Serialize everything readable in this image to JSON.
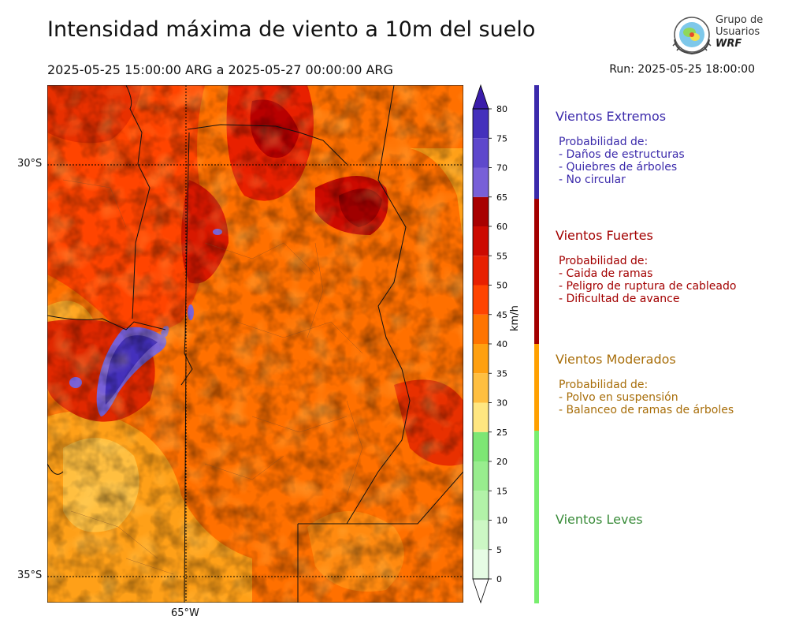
{
  "header": {
    "title": "Intensidad máxima de viento a 10m del suelo",
    "period": "2025-05-25 15:00:00 ARG  a  2025-05-27 00:00:00 ARG",
    "run": "Run: 2025-05-25 18:00:00"
  },
  "logo": {
    "line1": "Grupo de",
    "line2": "Usuarios",
    "line3": "WRF"
  },
  "map": {
    "lat_labels": [
      "30°S",
      "35°S"
    ],
    "lon_labels": [
      "65°W"
    ]
  },
  "colorbar": {
    "unit": "km/h",
    "ticks": [
      "0",
      "5",
      "10",
      "15",
      "20",
      "25",
      "30",
      "35",
      "40",
      "45",
      "50",
      "55",
      "60",
      "65",
      "70",
      "75",
      "80"
    ],
    "colors": [
      "#e6fce4",
      "#ccf7c4",
      "#b2f2a8",
      "#98ed8e",
      "#7de674",
      "#ffe680",
      "#ffbf40",
      "#ffa010",
      "#ff7400",
      "#ff4400",
      "#e82000",
      "#cc0a00",
      "#a80000",
      "#7860d8",
      "#5e48cc",
      "#4430bc",
      "#3a1caa"
    ]
  },
  "categories": [
    {
      "title": "Vientos Extremos",
      "color": "#3b2aab",
      "lines": [
        "Probabilidad de:",
        "- Daños de estructuras",
        "- Quiebres de árboles",
        "- No circular"
      ]
    },
    {
      "title": "Vientos Fuertes",
      "color": "#a30000",
      "lines": [
        "Probabilidad de:",
        "- Caida de ramas",
        "- Peligro de ruptura de cableado",
        "- Dificultad de avance"
      ]
    },
    {
      "title": "Vientos Moderados",
      "color": "#a86e0a",
      "lines": [
        "Probabilidad de:",
        "- Polvo en suspensión",
        "- Balanceo de ramas de árboles"
      ]
    },
    {
      "title": "Vientos Leves",
      "color": "#3a8c3a",
      "lines": []
    }
  ],
  "sidebar_colors": [
    "#3b2aab",
    "#a30000",
    "#ffa000",
    "#78ee6e"
  ]
}
